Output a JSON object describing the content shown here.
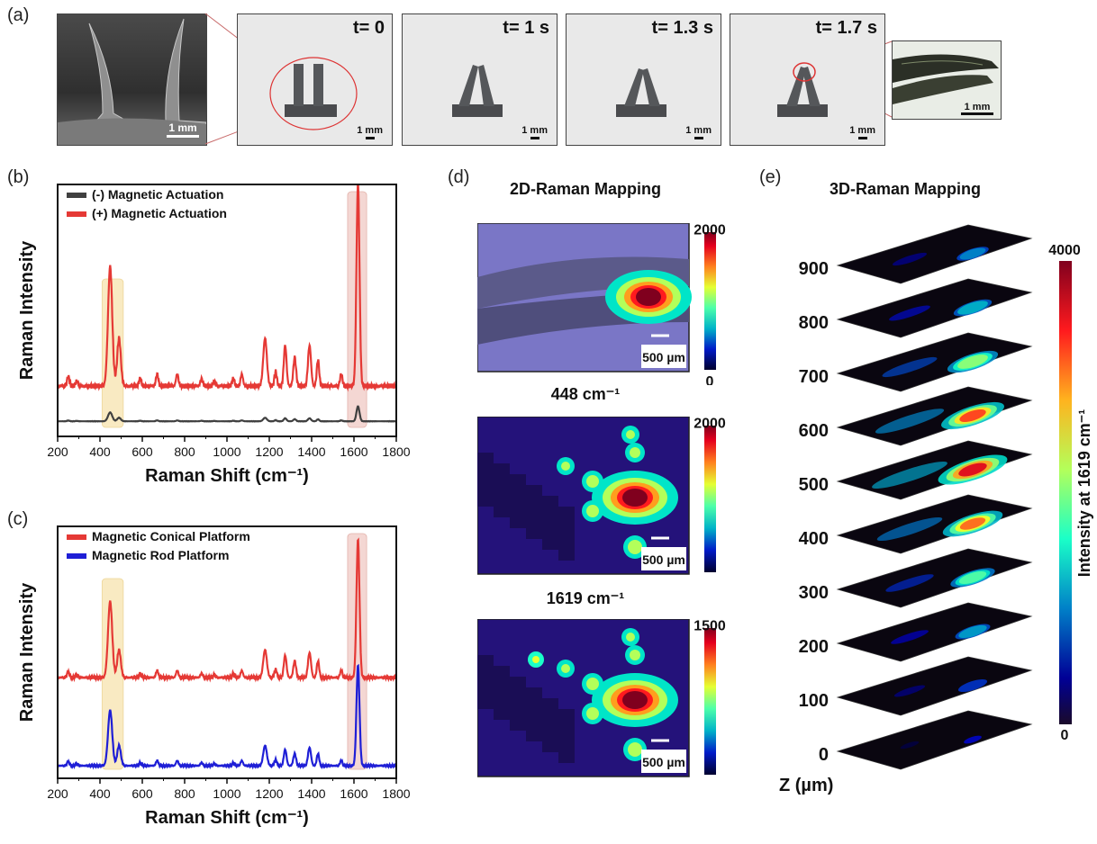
{
  "panel_a": {
    "label": "(a)",
    "sem_scale": "1 mm",
    "frames": [
      {
        "time": "t= 0",
        "scale": "1 mm"
      },
      {
        "time": "t= 1 s",
        "scale": "1 mm"
      },
      {
        "time": "t= 1.3 s",
        "scale": "1 mm"
      },
      {
        "time": "t= 1.7 s",
        "scale": "1 mm"
      }
    ],
    "zoom_scale": "1 mm"
  },
  "panel_b": {
    "label": "(b)"
  },
  "panel_c": {
    "label": "(c)"
  },
  "panel_d": {
    "label": "(d)",
    "title": "2D-Raman Mapping",
    "maps": [
      {
        "caption": "",
        "max": "2000",
        "min": "0",
        "scale": "500 µm"
      },
      {
        "caption": "448 cm⁻¹",
        "max": "2000",
        "min": "0",
        "scale": "500 µm"
      },
      {
        "caption": "1619 cm⁻¹",
        "max": "1500",
        "min": "0",
        "scale": "500 µm"
      }
    ]
  },
  "panel_e": {
    "label": "(e)",
    "title": "3D-Raman Mapping",
    "z_ticks": [
      "900",
      "800",
      "700",
      "600",
      "500",
      "400",
      "300",
      "200",
      "100",
      "0"
    ],
    "z_label": "Z (µm)",
    "colorbar_max": "4000",
    "colorbar_min": "0",
    "colorbar_label": "Intensity at 1619 cm⁻¹",
    "slice_intensity": [
      0.35,
      0.45,
      0.65,
      0.85,
      0.95,
      0.8,
      0.55,
      0.4,
      0.3,
      0.12
    ]
  },
  "colors": {
    "red": "#e53935",
    "dark": "#404040",
    "blue": "#1f1fd6",
    "yellow_band": "#f3d27a",
    "red_band": "#e7a8a0"
  },
  "chart_data": [
    {
      "type": "line",
      "id": "b",
      "xlabel": "Raman Shift (cm⁻¹)",
      "ylabel": "Raman Intensity",
      "xlim": [
        200,
        1800
      ],
      "xticks": [
        200,
        400,
        600,
        800,
        1000,
        1200,
        1400,
        1600,
        1800
      ],
      "bands": [
        [
          410,
          510
        ],
        [
          1570,
          1660
        ]
      ],
      "series": [
        {
          "name": "(-) Magnetic Actuation",
          "color": "#404040",
          "baseline": 0.06,
          "scale": 0.07
        },
        {
          "name": "(+) Magnetic Actuation",
          "color": "#e53935",
          "baseline": 0.2,
          "scale": 0.95
        }
      ],
      "peaks": [
        [
          250,
          0.04,
          8
        ],
        [
          290,
          0.02,
          8
        ],
        [
          448,
          0.5,
          14
        ],
        [
          490,
          0.2,
          12
        ],
        [
          590,
          0.03,
          8
        ],
        [
          670,
          0.05,
          8
        ],
        [
          765,
          0.05,
          8
        ],
        [
          880,
          0.03,
          8
        ],
        [
          940,
          0.02,
          8
        ],
        [
          1030,
          0.03,
          8
        ],
        [
          1070,
          0.05,
          8
        ],
        [
          1180,
          0.2,
          12
        ],
        [
          1230,
          0.06,
          8
        ],
        [
          1275,
          0.17,
          9
        ],
        [
          1320,
          0.12,
          9
        ],
        [
          1390,
          0.17,
          10
        ],
        [
          1430,
          0.11,
          8
        ],
        [
          1540,
          0.05,
          8
        ],
        [
          1619,
          0.85,
          10
        ]
      ]
    },
    {
      "type": "line",
      "id": "c",
      "xlabel": "Raman Shift (cm⁻¹)",
      "ylabel": "Raman Intensity",
      "xlim": [
        200,
        1800
      ],
      "xticks": [
        200,
        400,
        600,
        800,
        1000,
        1200,
        1400,
        1600,
        1800
      ],
      "bands": [
        [
          410,
          510
        ],
        [
          1570,
          1660
        ]
      ],
      "series": [
        {
          "name": "Magnetic Conical Platform",
          "color": "#e53935",
          "baseline": 0.4,
          "scale": 0.55
        },
        {
          "name": "Magnetic Rod Platform",
          "color": "#1f1fd6",
          "baseline": 0.05,
          "scale": 0.4
        }
      ],
      "peaks": [
        [
          250,
          0.04,
          8
        ],
        [
          290,
          0.02,
          8
        ],
        [
          448,
          0.55,
          14
        ],
        [
          490,
          0.2,
          12
        ],
        [
          590,
          0.03,
          8
        ],
        [
          670,
          0.05,
          8
        ],
        [
          765,
          0.05,
          8
        ],
        [
          880,
          0.03,
          8
        ],
        [
          940,
          0.02,
          8
        ],
        [
          1030,
          0.03,
          8
        ],
        [
          1070,
          0.05,
          8
        ],
        [
          1180,
          0.2,
          12
        ],
        [
          1230,
          0.06,
          8
        ],
        [
          1275,
          0.16,
          9
        ],
        [
          1320,
          0.12,
          9
        ],
        [
          1390,
          0.18,
          10
        ],
        [
          1430,
          0.12,
          8
        ],
        [
          1540,
          0.05,
          8
        ],
        [
          1619,
          1.0,
          10
        ]
      ]
    }
  ]
}
